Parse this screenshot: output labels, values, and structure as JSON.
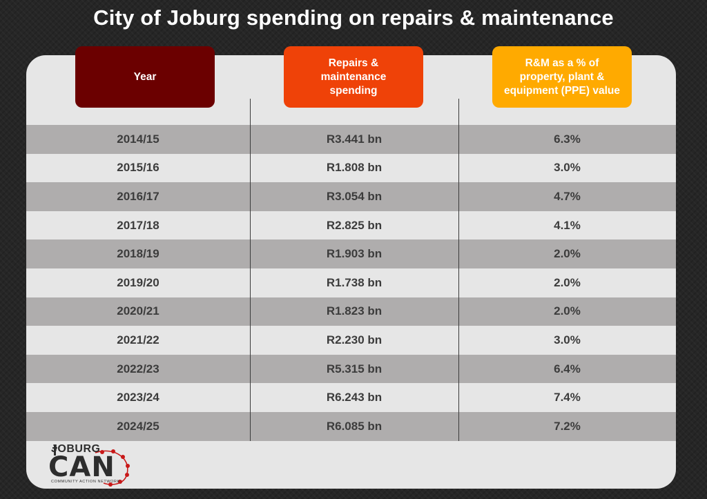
{
  "title": "City of Joburg spending on repairs & maintenance",
  "headers": [
    {
      "label": "Year",
      "color": "#6b0000"
    },
    {
      "label": "Repairs &\nmaintenance\nspending",
      "color": "#ef4208"
    },
    {
      "label": "R&M as a % of\nproperty, plant &\nequipment (PPE) value",
      "color": "#ffaa00"
    }
  ],
  "chart_data": {
    "type": "table",
    "title": "City of Joburg spending on repairs & maintenance",
    "columns": [
      "Year",
      "Repairs & maintenance spending",
      "R&M as a % of property, plant & equipment (PPE) value"
    ],
    "rows": [
      [
        "2014/15",
        "R3.441 bn",
        "6.3%"
      ],
      [
        "2015/16",
        "R1.808 bn",
        "3.0%"
      ],
      [
        "2016/17",
        "R3.054 bn",
        "4.7%"
      ],
      [
        "2017/18",
        "R2.825 bn",
        "4.1%"
      ],
      [
        "2018/19",
        "R1.903 bn",
        "2.0%"
      ],
      [
        "2019/20",
        "R1.738 bn",
        "2.0%"
      ],
      [
        "2020/21",
        "R1.823 bn",
        "2.0%"
      ],
      [
        "2021/22",
        "R2.230 bn",
        "3.0%"
      ],
      [
        "2022/23",
        "R5.315 bn",
        "6.4%"
      ],
      [
        "2023/24",
        "R6.243 bn",
        "7.4%"
      ],
      [
        "2024/25",
        "R6.085 bn",
        "7.2%"
      ]
    ]
  },
  "logo": {
    "top_text": "JOBURG",
    "main_text": "CAN",
    "tagline": "COMMUNITY ACTION NETWORK",
    "accent_color": "#c81818"
  }
}
